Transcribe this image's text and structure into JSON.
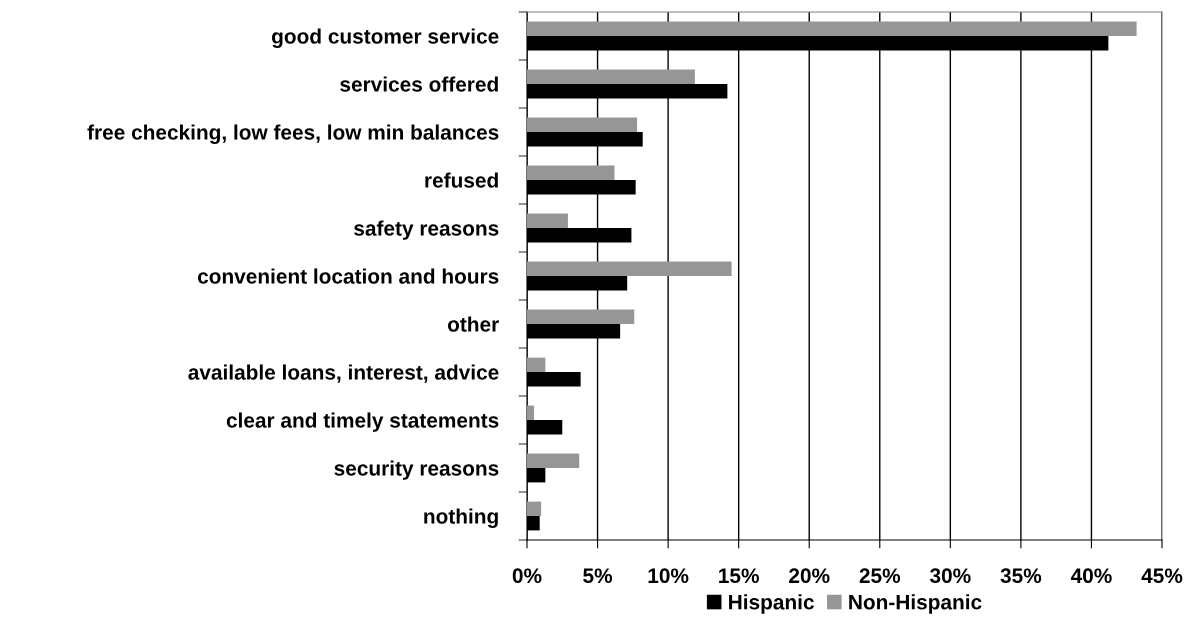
{
  "chart_data": {
    "type": "bar",
    "orientation": "horizontal",
    "categories": [
      "good customer service",
      "services offered",
      "free checking, low fees, low min balances",
      "refused",
      "safety reasons",
      "convenient location and hours",
      "other",
      "available loans, interest, advice",
      "clear and timely statements",
      "security reasons",
      "nothing"
    ],
    "series": [
      {
        "name": "Hispanic",
        "color": "#000000",
        "values": [
          41.2,
          14.2,
          8.2,
          7.7,
          7.4,
          7.1,
          6.6,
          3.8,
          2.5,
          1.3,
          0.9
        ]
      },
      {
        "name": "Non-Hispanic",
        "color": "#969696",
        "values": [
          43.2,
          11.9,
          7.8,
          6.2,
          2.9,
          14.5,
          7.6,
          1.3,
          0.5,
          3.7,
          1.0
        ]
      }
    ],
    "xlim": [
      0,
      45
    ],
    "xticks": [
      {
        "value": 0,
        "label": "0%"
      },
      {
        "value": 5,
        "label": "5%"
      },
      {
        "value": 10,
        "label": "10%"
      },
      {
        "value": 15,
        "label": "15%"
      },
      {
        "value": 20,
        "label": "20%"
      },
      {
        "value": 25,
        "label": "25%"
      },
      {
        "value": 30,
        "label": "30%"
      },
      {
        "value": 35,
        "label": "35%"
      },
      {
        "value": 40,
        "label": "40%"
      },
      {
        "value": 45,
        "label": "45%"
      }
    ],
    "grid": "x",
    "legend": "bottom"
  }
}
